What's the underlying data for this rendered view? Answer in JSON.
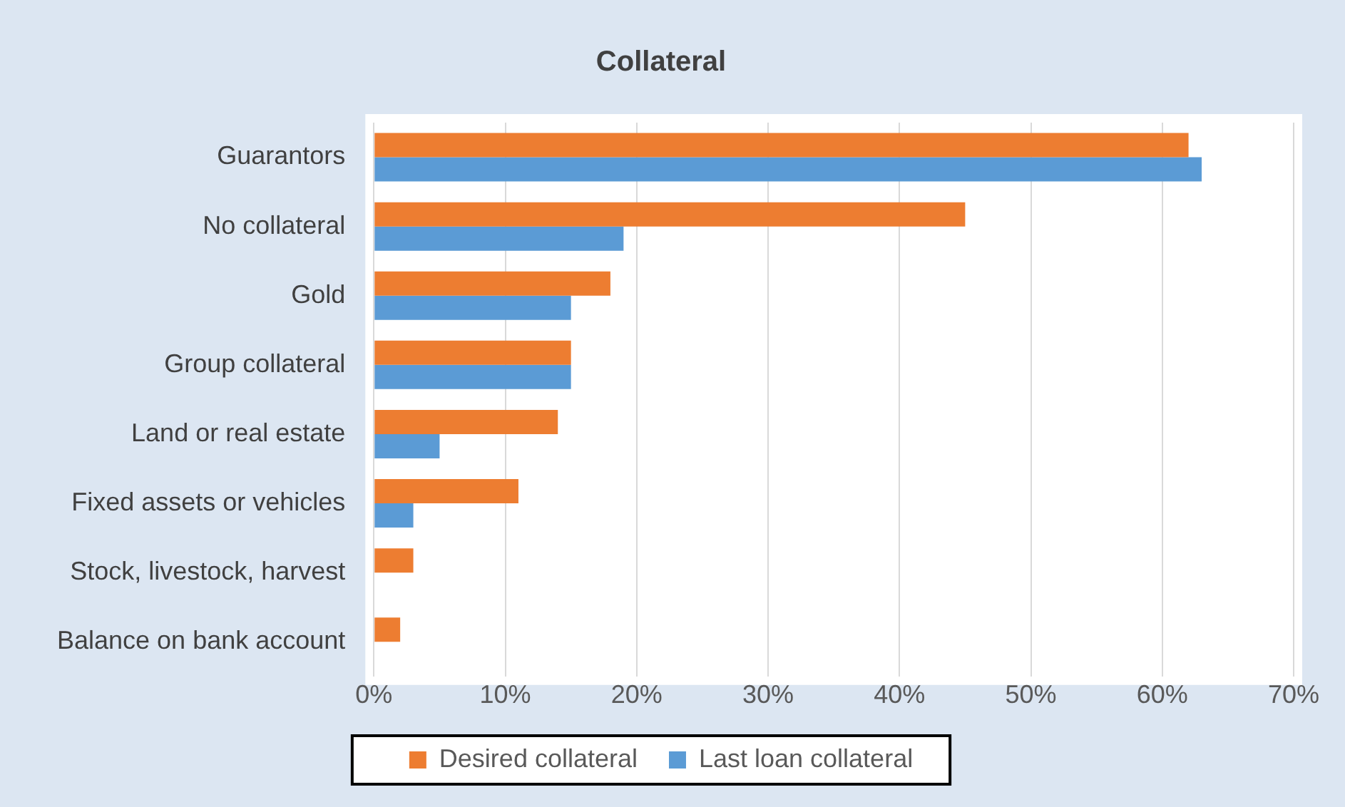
{
  "chart_data": {
    "type": "bar",
    "orientation": "horizontal",
    "title": "Collateral",
    "categories": [
      "Guarantors",
      "No collateral",
      "Gold",
      "Group collateral",
      "Land or real estate",
      "Fixed assets or vehicles",
      "Stock, livestock, harvest",
      "Balance on bank account"
    ],
    "series": [
      {
        "name": "Desired collateral",
        "color": "#ed7d31",
        "values": [
          62,
          45,
          18,
          15,
          14,
          11,
          3,
          2
        ]
      },
      {
        "name": "Last loan collateral",
        "color": "#5b9bd5",
        "values": [
          63,
          19,
          15,
          15,
          5,
          3,
          0,
          0
        ]
      }
    ],
    "xlim": [
      0,
      70
    ],
    "xticks": [
      {
        "value": 0,
        "label": "0%"
      },
      {
        "value": 10,
        "label": "10%"
      },
      {
        "value": 20,
        "label": "20%"
      },
      {
        "value": 30,
        "label": "30%"
      },
      {
        "value": 40,
        "label": "40%"
      },
      {
        "value": 50,
        "label": "50%"
      },
      {
        "value": 60,
        "label": "60%"
      },
      {
        "value": 70,
        "label": "70%"
      }
    ],
    "grid": "x",
    "legend": "bottom"
  }
}
